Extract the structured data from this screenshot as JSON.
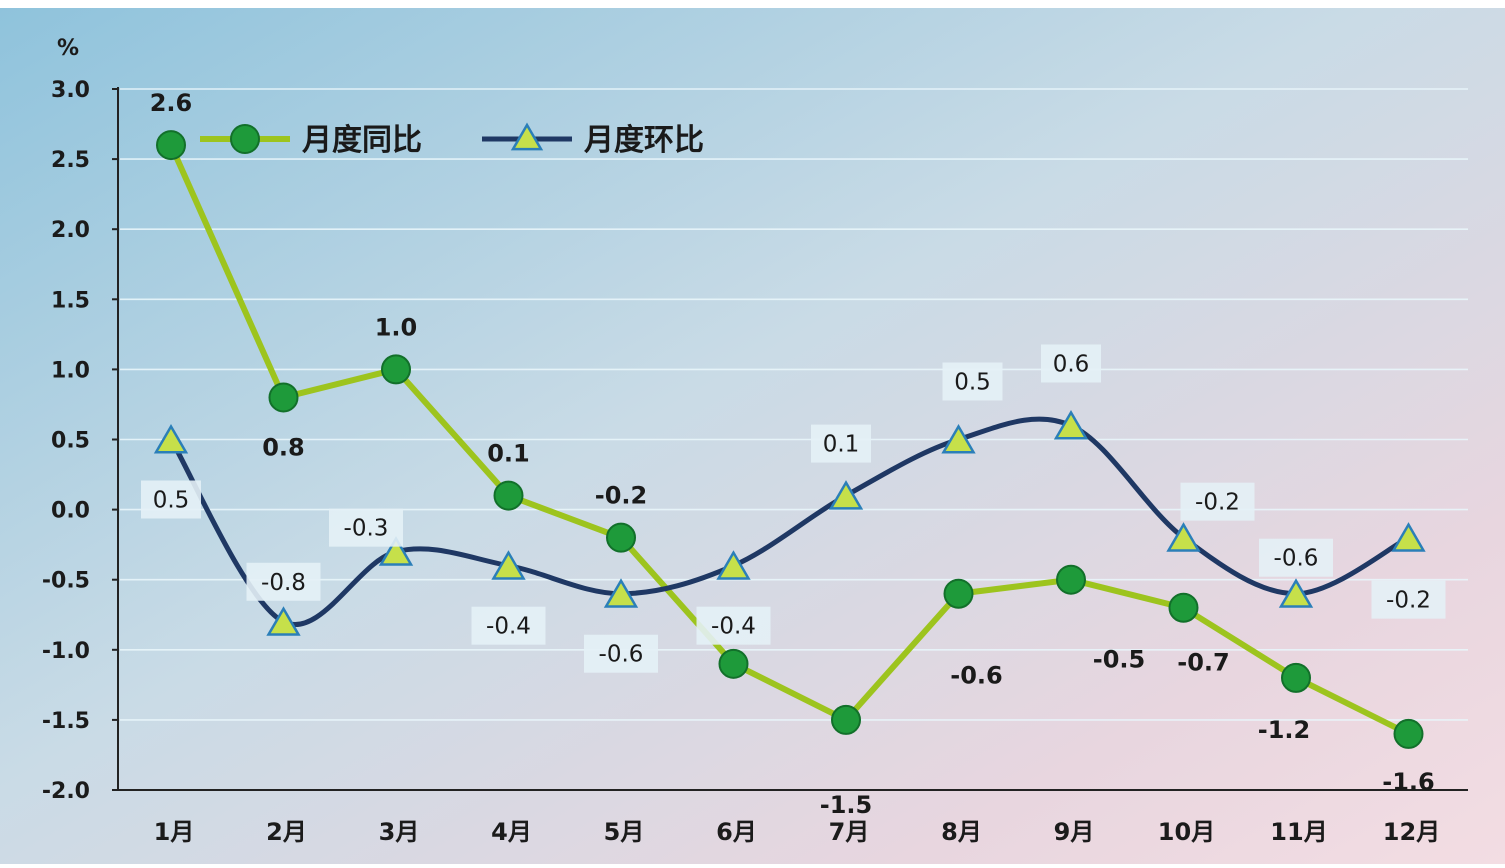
{
  "chart_data": {
    "type": "line",
    "ylabel": "%",
    "ylim": [
      -2.0,
      3.0
    ],
    "ytick_labels": [
      "3.0",
      "2.5",
      "2.0",
      "1.5",
      "1.0",
      "0.5",
      "0.0",
      "-0.5",
      "-1.0",
      "-1.5",
      "-2.0"
    ],
    "categories": [
      "1月",
      "2月",
      "3月",
      "4月",
      "5月",
      "6月",
      "7月",
      "8月",
      "9月",
      "10月",
      "11月",
      "12月"
    ],
    "legend_position": "top-left",
    "grid": true,
    "series": [
      {
        "name": "月度同比",
        "color": "#9dc41e",
        "marker_color": "#1e9a3a",
        "marker": "circle",
        "values": [
          2.6,
          0.8,
          1.0,
          0.1,
          -0.2,
          -1.1,
          -1.5,
          -0.6,
          -0.5,
          -0.7,
          -1.2,
          -1.6
        ],
        "data_labels": [
          "2.6",
          "0.8",
          "1.0",
          "0.1",
          "-0.2",
          "",
          "-1.5",
          "-0.6",
          "-0.5",
          "-0.7",
          "-1.2",
          "-1.6"
        ]
      },
      {
        "name": "月度环比",
        "color": "#1f3864",
        "marker_color": "#c6e04a",
        "marker": "triangle",
        "values": [
          0.5,
          -0.8,
          -0.3,
          -0.4,
          -0.6,
          -0.4,
          0.1,
          0.5,
          0.6,
          -0.2,
          -0.6,
          -0.2
        ],
        "data_labels": [
          "0.5",
          "-0.8",
          "-0.3",
          "-0.4",
          "-0.6",
          "-0.4",
          "0.1",
          "0.5",
          "0.6",
          "-0.2",
          "-0.6",
          "-0.2"
        ]
      }
    ]
  }
}
